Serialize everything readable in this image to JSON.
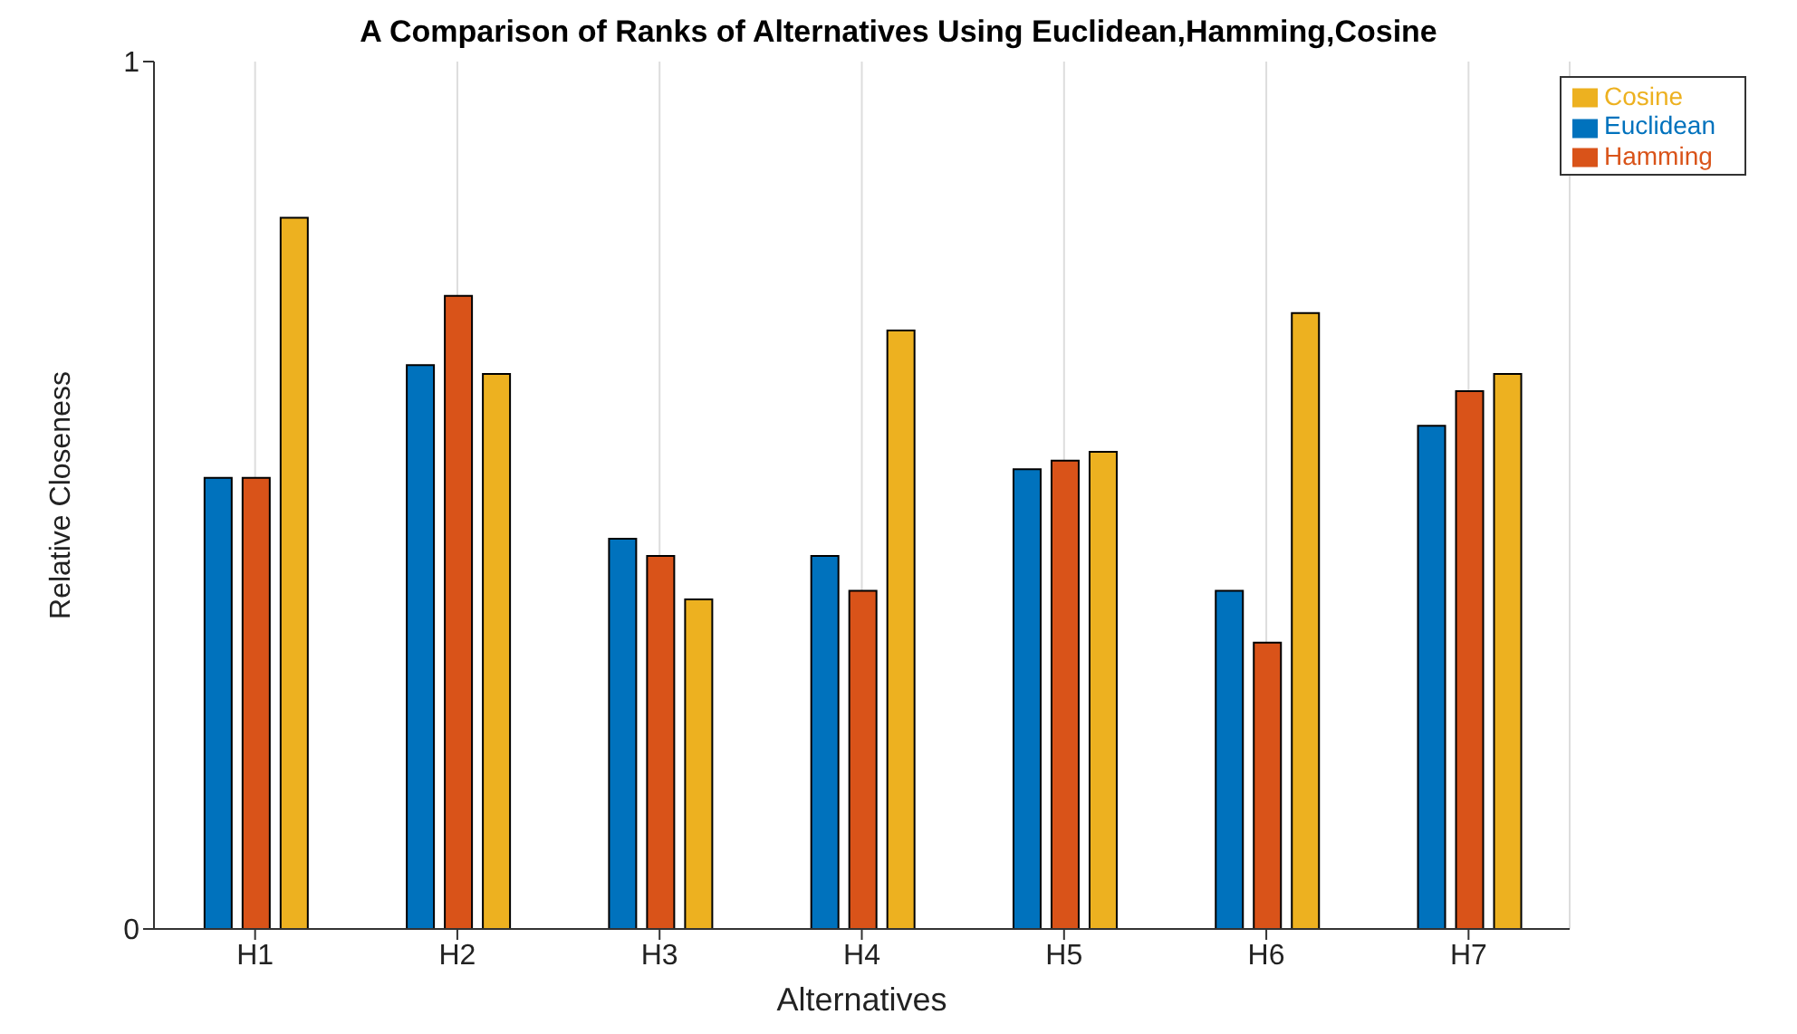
{
  "chart_data": {
    "type": "bar",
    "title": "A Comparison of Ranks of Alternatives Using Euclidean,Hamming,Cosine",
    "xlabel": "Alternatives",
    "ylabel": "Relative Closeness",
    "categories": [
      "H1",
      "H2",
      "H3",
      "H4",
      "H5",
      "H6",
      "H7"
    ],
    "series": [
      {
        "name": "Euclidean",
        "color": "#0072bd",
        "values": [
          0.52,
          0.65,
          0.45,
          0.43,
          0.53,
          0.39,
          0.58
        ]
      },
      {
        "name": "Hamming",
        "color": "#d95319",
        "values": [
          0.52,
          0.73,
          0.43,
          0.39,
          0.54,
          0.33,
          0.62
        ]
      },
      {
        "name": "Cosine",
        "color": "#edb120",
        "values": [
          0.82,
          0.64,
          0.38,
          0.69,
          0.55,
          0.71,
          0.64
        ]
      }
    ],
    "ylim": [
      0,
      1
    ],
    "yticks": [
      0,
      1
    ],
    "grid": "x",
    "legend": "top right"
  }
}
